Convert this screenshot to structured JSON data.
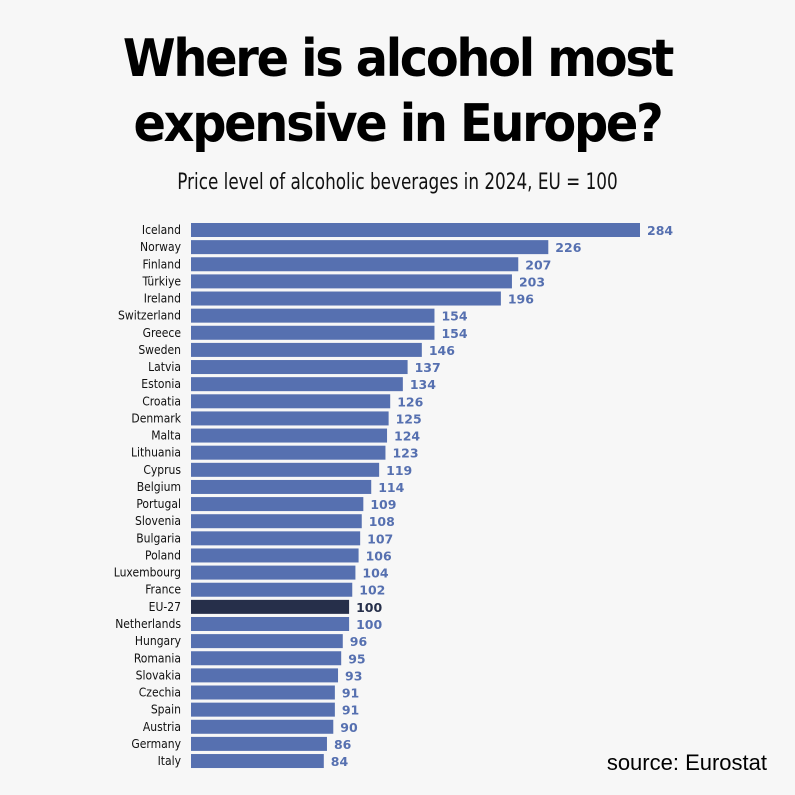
{
  "title_line1": "Where is alcohol most",
  "title_line2": "expensive in Europe?",
  "subtitle": "Price level of alcoholic beverages in 2024, EU = 100",
  "source": "source: Eurostat",
  "colors": {
    "bar": "#5670b0",
    "highlight": "#262f4a",
    "background": "#f7f7f7"
  },
  "chart_data": {
    "type": "bar",
    "orientation": "horizontal",
    "title": "Where is alcohol most expensive in Europe?",
    "subtitle": "Price level of alcoholic beverages in 2024, EU = 100",
    "categories": [
      "Iceland",
      "Norway",
      "Finland",
      "Türkiye",
      "Ireland",
      "Switzerland",
      "Greece",
      "Sweden",
      "Latvia",
      "Estonia",
      "Croatia",
      "Denmark",
      "Malta",
      "Lithuania",
      "Cyprus",
      "Belgium",
      "Portugal",
      "Slovenia",
      "Bulgaria",
      "Poland",
      "Luxembourg",
      "France",
      "EU-27",
      "Netherlands",
      "Hungary",
      "Romania",
      "Slovakia",
      "Czechia",
      "Spain",
      "Austria",
      "Germany",
      "Italy"
    ],
    "values": [
      284,
      226,
      207,
      203,
      196,
      154,
      154,
      146,
      137,
      134,
      126,
      125,
      124,
      123,
      119,
      114,
      109,
      108,
      107,
      106,
      104,
      102,
      100,
      100,
      96,
      95,
      93,
      91,
      91,
      90,
      86,
      84
    ],
    "highlight": "EU-27",
    "xlim": [
      0,
      284
    ],
    "grid": false,
    "data_labels": true
  }
}
